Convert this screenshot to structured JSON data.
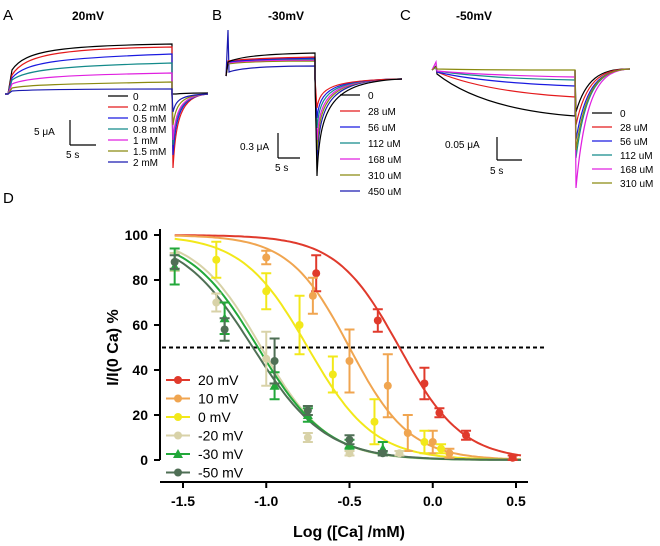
{
  "panels": [
    {
      "letter": "A",
      "title": "20mV",
      "scale_y": "5 μA",
      "scale_x": "5 s",
      "legend": [
        {
          "label": "0",
          "color": "#000000"
        },
        {
          "label": "0.2 mM",
          "color": "#e41a1c"
        },
        {
          "label": "0.5 mM",
          "color": "#1a1ae0"
        },
        {
          "label": "0.8 mM",
          "color": "#138a8a"
        },
        {
          "label": "1 mM",
          "color": "#e020e0"
        },
        {
          "label": "1.5 mM",
          "color": "#8a8a10"
        },
        {
          "label": "2 mM",
          "color": "#1a1ab0"
        }
      ]
    },
    {
      "letter": "B",
      "title": "-30mV",
      "scale_y": "0.3 μA",
      "scale_x": "5 s",
      "legend": [
        {
          "label": "0",
          "color": "#000000"
        },
        {
          "label": "28 uM",
          "color": "#e41a1c"
        },
        {
          "label": "56 uM",
          "color": "#1a1ae0"
        },
        {
          "label": "112 uM",
          "color": "#138a8a"
        },
        {
          "label": "168 uM",
          "color": "#e020e0"
        },
        {
          "label": "310 uM",
          "color": "#8a8a10"
        },
        {
          "label": "450 uM",
          "color": "#1a1ab0"
        }
      ]
    },
    {
      "letter": "C",
      "title": "-50mV",
      "scale_y": "0.05 μA",
      "scale_x": "5 s",
      "legend": [
        {
          "label": "0",
          "color": "#000000"
        },
        {
          "label": "28 uM",
          "color": "#e41a1c"
        },
        {
          "label": "56 uM",
          "color": "#1a1ae0"
        },
        {
          "label": "112 uM",
          "color": "#138a8a"
        },
        {
          "label": "168 uM",
          "color": "#e020e0"
        },
        {
          "label": "310 uM",
          "color": "#8a8a10"
        }
      ]
    }
  ],
  "panel_d_letter": "D",
  "chart_data": {
    "type": "scatter",
    "xlabel": "Log ([Ca] /mM)",
    "ylabel": "I/I(0 Ca) %",
    "xlim": [
      -1.6,
      0.55
    ],
    "ylim": [
      0,
      100
    ],
    "xticks": [
      "-1.5",
      "-1.0",
      "-0.5",
      "0.0",
      "0.5"
    ],
    "xtick_values": [
      -1.5,
      -1.0,
      -0.5,
      0.0,
      0.5
    ],
    "yticks": [
      "0",
      "20",
      "40",
      "60",
      "80",
      "100"
    ],
    "ytick_values": [
      0,
      20,
      40,
      60,
      80,
      100
    ],
    "reference_line_y": 50,
    "legend_position": "bottom-left",
    "series": [
      {
        "name": "20 mV",
        "color": "#e03a2c",
        "marker": "circle",
        "fit": {
          "ic50_log": -0.2,
          "hill": 2.3
        },
        "points": [
          {
            "x": -0.7,
            "y": 83,
            "err": 8
          },
          {
            "x": -0.33,
            "y": 62,
            "err": 5
          },
          {
            "x": -0.05,
            "y": 34,
            "err": 7
          },
          {
            "x": 0.04,
            "y": 21,
            "err": 2
          },
          {
            "x": 0.2,
            "y": 11,
            "err": 2
          },
          {
            "x": 0.48,
            "y": 1,
            "err": 1
          }
        ]
      },
      {
        "name": "10 mV",
        "color": "#f0a550",
        "marker": "circle",
        "fit": {
          "ic50_log": -0.5,
          "hill": 2.4
        },
        "points": [
          {
            "x": -1.0,
            "y": 90,
            "err": 3
          },
          {
            "x": -0.72,
            "y": 73,
            "err": 8
          },
          {
            "x": -0.5,
            "y": 44,
            "err": 14
          },
          {
            "x": -0.27,
            "y": 33,
            "err": 14
          },
          {
            "x": -0.15,
            "y": 12,
            "err": 8
          },
          {
            "x": 0.0,
            "y": 8,
            "err": 5
          },
          {
            "x": 0.1,
            "y": 3,
            "err": 2
          }
        ]
      },
      {
        "name": "0 mV",
        "color": "#f2e81a",
        "marker": "circle",
        "fit": {
          "ic50_log": -0.75,
          "hill": 2.2
        },
        "points": [
          {
            "x": -1.3,
            "y": 89,
            "err": 8
          },
          {
            "x": -1.0,
            "y": 75,
            "err": 8
          },
          {
            "x": -0.8,
            "y": 60,
            "err": 13
          },
          {
            "x": -0.6,
            "y": 38,
            "err": 8
          },
          {
            "x": -0.35,
            "y": 17,
            "err": 10
          },
          {
            "x": -0.05,
            "y": 8,
            "err": 5
          },
          {
            "x": 0.05,
            "y": 5,
            "err": 2
          }
        ]
      },
      {
        "name": "-20 mV",
        "color": "#d8d2a8",
        "marker": "circle",
        "fit": {
          "ic50_log": -1.03,
          "hill": 2.2
        },
        "points": [
          {
            "x": -1.55,
            "y": 88,
            "err": 4
          },
          {
            "x": -1.3,
            "y": 70,
            "err": 4
          },
          {
            "x": -1.0,
            "y": 45,
            "err": 12
          },
          {
            "x": -0.75,
            "y": 10,
            "err": 2
          },
          {
            "x": -0.5,
            "y": 3,
            "err": 1
          },
          {
            "x": -0.2,
            "y": 3,
            "err": 1
          }
        ]
      },
      {
        "name": "-30 mV",
        "color": "#22a83a",
        "marker": "triangle",
        "fit": {
          "ic50_log": -1.05,
          "hill": 2.1
        },
        "points": [
          {
            "x": -1.55,
            "y": 86,
            "err": 8
          },
          {
            "x": -1.25,
            "y": 63,
            "err": 7
          },
          {
            "x": -0.95,
            "y": 33,
            "err": 6
          },
          {
            "x": -0.75,
            "y": 20,
            "err": 3
          },
          {
            "x": -0.5,
            "y": 7,
            "err": 2
          },
          {
            "x": -0.3,
            "y": 5,
            "err": 3
          }
        ]
      },
      {
        "name": "-50 mV",
        "color": "#4f6f55",
        "marker": "circle",
        "fit": {
          "ic50_log": -1.08,
          "hill": 2.0
        },
        "points": [
          {
            "x": -1.55,
            "y": 88,
            "err": 3
          },
          {
            "x": -1.25,
            "y": 58,
            "err": 5
          },
          {
            "x": -0.95,
            "y": 44,
            "err": 10
          },
          {
            "x": -0.75,
            "y": 22,
            "err": 2
          },
          {
            "x": -0.5,
            "y": 9,
            "err": 2
          },
          {
            "x": -0.3,
            "y": 3,
            "err": 1
          }
        ]
      }
    ]
  }
}
